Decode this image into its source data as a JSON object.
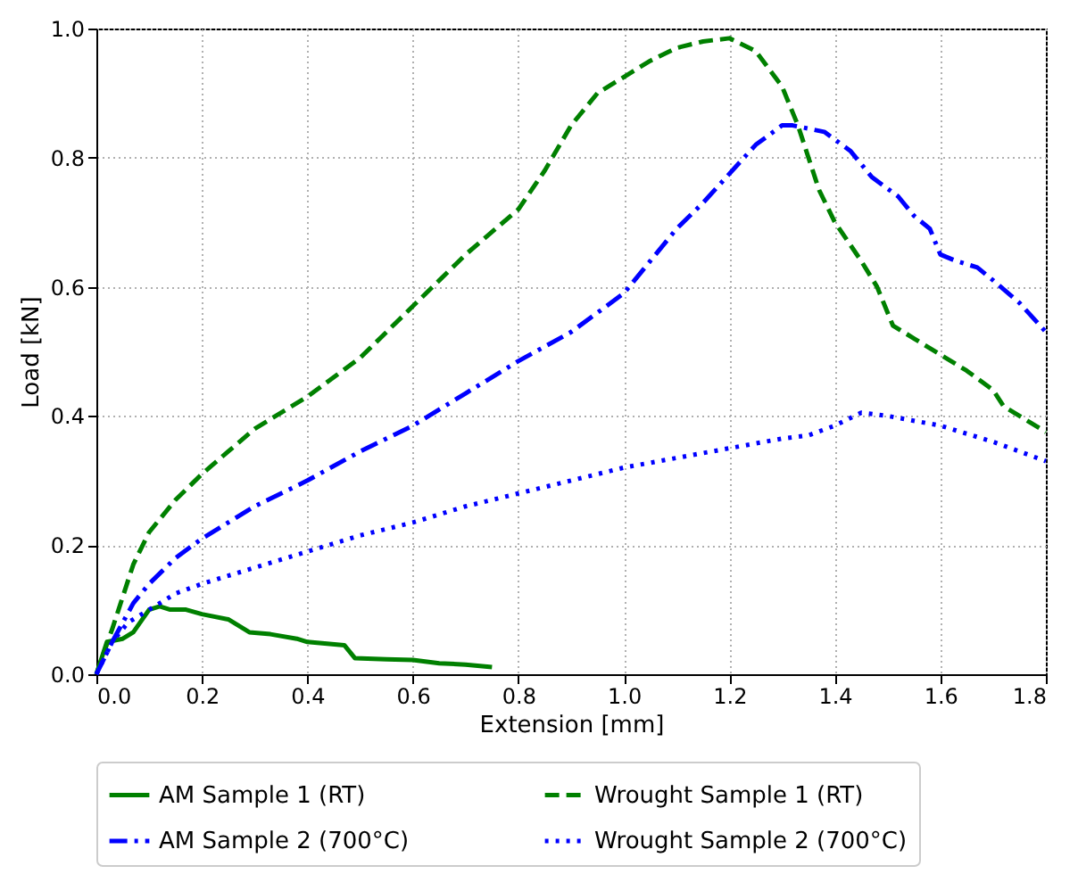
{
  "chart_data": {
    "type": "line",
    "xlabel": "Extension [mm]",
    "ylabel": "Load [kN]",
    "xlim": [
      0,
      1.8
    ],
    "ylim": [
      0,
      1.0
    ],
    "xticks": [
      {
        "value": 0,
        "label": "0.0"
      },
      {
        "value": 0.2,
        "label": "0.2"
      },
      {
        "value": 0.4,
        "label": "0.4"
      },
      {
        "value": 0.6,
        "label": "0.6"
      },
      {
        "value": 0.8,
        "label": "0.8"
      },
      {
        "value": 1.0,
        "label": "1.0"
      },
      {
        "value": 1.2,
        "label": "1.2"
      },
      {
        "value": 1.4,
        "label": "1.4"
      },
      {
        "value": 1.6,
        "label": "1.6"
      },
      {
        "value": 1.8,
        "label": "1.8"
      }
    ],
    "yticks": [
      {
        "value": 0,
        "label": "0.0"
      },
      {
        "value": 0.2,
        "label": "0.2"
      },
      {
        "value": 0.4,
        "label": "0.4"
      },
      {
        "value": 0.6,
        "label": "0.6"
      },
      {
        "value": 0.8,
        "label": "0.8"
      },
      {
        "value": 1.0,
        "label": "1.0"
      }
    ],
    "grid": true,
    "legend": "bottom",
    "marker": "none",
    "series": [
      {
        "name": "AM Sample 1 (RT)",
        "color": "#008000",
        "line_style": "solid",
        "x": [
          0,
          0.02,
          0.05,
          0.07,
          0.1,
          0.12,
          0.14,
          0.17,
          0.2,
          0.25,
          0.29,
          0.33,
          0.38,
          0.4,
          0.47,
          0.49,
          0.55,
          0.6,
          0.65,
          0.7,
          0.75
        ],
        "values": [
          0,
          0.05,
          0.055,
          0.065,
          0.1,
          0.105,
          0.1,
          0.1,
          0.093,
          0.085,
          0.065,
          0.062,
          0.055,
          0.05,
          0.045,
          0.025,
          0.023,
          0.022,
          0.017,
          0.015,
          0.011
        ]
      },
      {
        "name": "Wrought Sample 1 (RT)",
        "color": "#008000",
        "line_style": "dashed",
        "x": [
          0,
          0.03,
          0.07,
          0.1,
          0.15,
          0.2,
          0.25,
          0.3,
          0.4,
          0.5,
          0.6,
          0.65,
          0.7,
          0.8,
          0.85,
          0.9,
          0.95,
          1.0,
          1.05,
          1.1,
          1.15,
          1.2,
          1.25,
          1.3,
          1.33,
          1.37,
          1.4,
          1.45,
          1.48,
          1.51,
          1.55,
          1.6,
          1.65,
          1.7,
          1.72,
          1.75,
          1.8
        ],
        "values": [
          0,
          0.07,
          0.17,
          0.22,
          0.27,
          0.31,
          0.345,
          0.38,
          0.43,
          0.49,
          0.57,
          0.61,
          0.65,
          0.72,
          0.78,
          0.85,
          0.9,
          0.925,
          0.95,
          0.97,
          0.98,
          0.985,
          0.965,
          0.91,
          0.85,
          0.75,
          0.7,
          0.64,
          0.6,
          0.54,
          0.52,
          0.495,
          0.47,
          0.44,
          0.415,
          0.4,
          0.375
        ]
      },
      {
        "name": "AM Sample 2 (700°C)",
        "color": "#0000ff",
        "line_style": "dashdot",
        "x": [
          0,
          0.03,
          0.07,
          0.1,
          0.15,
          0.2,
          0.25,
          0.3,
          0.4,
          0.5,
          0.6,
          0.7,
          0.8,
          0.9,
          1.0,
          1.05,
          1.1,
          1.15,
          1.2,
          1.25,
          1.3,
          1.32,
          1.38,
          1.43,
          1.47,
          1.52,
          1.55,
          1.58,
          1.6,
          1.63,
          1.67,
          1.7,
          1.75,
          1.8
        ],
        "values": [
          0,
          0.05,
          0.11,
          0.14,
          0.18,
          0.21,
          0.235,
          0.26,
          0.3,
          0.345,
          0.385,
          0.435,
          0.485,
          0.53,
          0.59,
          0.64,
          0.69,
          0.73,
          0.775,
          0.82,
          0.85,
          0.85,
          0.84,
          0.81,
          0.77,
          0.74,
          0.71,
          0.69,
          0.65,
          0.64,
          0.63,
          0.61,
          0.575,
          0.53
        ]
      },
      {
        "name": "Wrought Sample 2 (700°C)",
        "color": "#0000ff",
        "line_style": "dotted",
        "x": [
          0,
          0.03,
          0.06,
          0.1,
          0.15,
          0.2,
          0.3,
          0.4,
          0.5,
          0.6,
          0.7,
          0.8,
          0.9,
          1.0,
          1.1,
          1.2,
          1.3,
          1.35,
          1.4,
          1.45,
          1.5,
          1.6,
          1.7,
          1.8
        ],
        "values": [
          0,
          0.05,
          0.08,
          0.1,
          0.125,
          0.14,
          0.165,
          0.19,
          0.215,
          0.235,
          0.26,
          0.28,
          0.3,
          0.32,
          0.335,
          0.35,
          0.365,
          0.37,
          0.385,
          0.405,
          0.4,
          0.385,
          0.36,
          0.33
        ]
      }
    ]
  }
}
